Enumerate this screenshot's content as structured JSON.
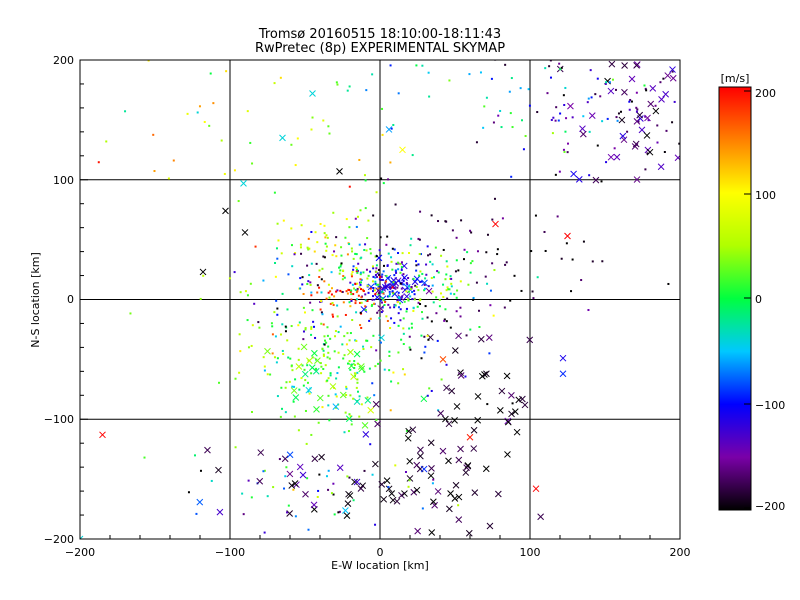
{
  "chart_data": {
    "type": "scatter",
    "title": "Tromsø 20160515 18:10:00-18:11:43",
    "subtitle": "RwPretec (8p) EXPERIMENTAL SKYMAP",
    "xlabel": "E-W location [km]",
    "ylabel": "N-S location [km]",
    "xlim": [
      -200,
      200
    ],
    "ylim": [
      -200,
      200
    ],
    "xticks": [
      "−200",
      "−100",
      "0",
      "100",
      "200"
    ],
    "yticks": [
      "−200",
      "−100",
      "0",
      "100",
      "200"
    ],
    "grid": true,
    "colorbar": {
      "label": "[m/s]",
      "range": [
        -200,
        200
      ],
      "ticks": [
        "200",
        "100",
        "0",
        "−100",
        "−200"
      ],
      "colors": [
        "#000000",
        "#7a00a8",
        "#0000ff",
        "#00c8ff",
        "#00ff40",
        "#b0ff00",
        "#ffff00",
        "#ff8000",
        "#ff0000"
      ]
    },
    "clusters": [
      {
        "x": 8,
        "y": 12,
        "sx": 14,
        "sy": 12,
        "v": -120,
        "vs": 30,
        "n": 130,
        "sym": "dot"
      },
      {
        "x": 12,
        "y": 8,
        "sx": 10,
        "sy": 8,
        "v": -100,
        "vs": 25,
        "n": 30,
        "sym": "x"
      },
      {
        "x": -15,
        "y": 3,
        "sx": 12,
        "sy": 10,
        "v": 175,
        "vs": 25,
        "n": 60,
        "sym": "dot"
      },
      {
        "x": 20,
        "y": 10,
        "sx": 25,
        "sy": 15,
        "v": 10,
        "vs": 40,
        "n": 120,
        "sym": "dot"
      },
      {
        "x": -30,
        "y": -55,
        "sx": 25,
        "sy": 28,
        "v": 20,
        "vs": 35,
        "n": 200,
        "sym": "dot"
      },
      {
        "x": -35,
        "y": -60,
        "sx": 25,
        "sy": 25,
        "v": 20,
        "vs": 40,
        "n": 30,
        "sym": "x"
      },
      {
        "x": -30,
        "y": 40,
        "sx": 20,
        "sy": 20,
        "v": 50,
        "vs": 70,
        "n": 80,
        "sym": "dot"
      },
      {
        "x": -40,
        "y": 10,
        "sx": 30,
        "sy": 25,
        "v": -120,
        "vs": 80,
        "n": 70,
        "sym": "dot"
      },
      {
        "x": 20,
        "y": -150,
        "sx": 30,
        "sy": 25,
        "v": -190,
        "vs": 15,
        "n": 60,
        "sym": "x"
      },
      {
        "x": -40,
        "y": -160,
        "sx": 45,
        "sy": 25,
        "v": -60,
        "vs": 90,
        "n": 60,
        "sym": "dot"
      },
      {
        "x": -40,
        "y": -155,
        "sx": 40,
        "sy": 25,
        "v": -150,
        "vs": 40,
        "n": 25,
        "sym": "x"
      },
      {
        "x": 75,
        "y": -80,
        "sx": 20,
        "sy": 25,
        "v": -190,
        "vs": 20,
        "n": 35,
        "sym": "x"
      },
      {
        "x": 60,
        "y": 30,
        "sx": 40,
        "sy": 30,
        "v": -190,
        "vs": 20,
        "n": 70,
        "sym": "dot"
      },
      {
        "x": 170,
        "y": 155,
        "sx": 25,
        "sy": 30,
        "v": -160,
        "vs": 30,
        "n": 45,
        "sym": "x"
      },
      {
        "x": 155,
        "y": 160,
        "sx": 35,
        "sy": 35,
        "v": -160,
        "vs": 40,
        "n": 90,
        "sym": "dot"
      },
      {
        "x": 80,
        "y": 180,
        "sx": 50,
        "sy": 25,
        "v": -30,
        "vs": 40,
        "n": 50,
        "sym": "dot"
      },
      {
        "x": -80,
        "y": 150,
        "sx": 70,
        "sy": 30,
        "v": 70,
        "vs": 60,
        "n": 50,
        "sym": "dot"
      },
      {
        "x": -60,
        "y": -10,
        "sx": 50,
        "sy": 40,
        "v": 60,
        "vs": 50,
        "n": 40,
        "sym": "dot"
      },
      {
        "x": 50,
        "y": -30,
        "sx": 25,
        "sy": 25,
        "v": -140,
        "vs": 60,
        "n": 35,
        "sym": "dot"
      }
    ],
    "points": [
      {
        "x": -185,
        "y": -113,
        "v": 200,
        "sym": "x"
      },
      {
        "x": -157,
        "y": -132,
        "v": 20,
        "sym": "dot"
      },
      {
        "x": -118,
        "y": 23,
        "v": -200,
        "sym": "x"
      },
      {
        "x": -103,
        "y": 74,
        "v": -200,
        "sym": "x"
      },
      {
        "x": -91,
        "y": 97,
        "v": -40,
        "sym": "x"
      },
      {
        "x": 125,
        "y": 53,
        "v": 200,
        "sym": "x"
      },
      {
        "x": 77,
        "y": 63,
        "v": 200,
        "sym": "x"
      },
      {
        "x": 104,
        "y": -158,
        "v": 200,
        "sym": "x"
      },
      {
        "x": 60,
        "y": -115,
        "v": 190,
        "sym": "x"
      },
      {
        "x": 42,
        "y": -50,
        "v": 170,
        "sym": "x"
      },
      {
        "x": 15,
        "y": 125,
        "v": 100,
        "sym": "x"
      },
      {
        "x": 6,
        "y": 142,
        "v": -60,
        "sym": "x"
      },
      {
        "x": 122,
        "y": -62,
        "v": -90,
        "sym": "x"
      },
      {
        "x": 122,
        "y": -49,
        "v": -110,
        "sym": "x"
      },
      {
        "x": -45,
        "y": 172,
        "v": -40,
        "sym": "x"
      },
      {
        "x": -65,
        "y": 135,
        "v": -40,
        "sym": "x"
      },
      {
        "x": -27,
        "y": 107,
        "v": -200,
        "sym": "x"
      },
      {
        "x": -90,
        "y": 56,
        "v": -200,
        "sym": "x"
      },
      {
        "x": 195,
        "y": 192,
        "v": -120,
        "sym": "x"
      },
      {
        "x": 180,
        "y": 123,
        "v": -200,
        "sym": "x"
      },
      {
        "x": 178,
        "y": 137,
        "v": -200,
        "sym": "x"
      },
      {
        "x": -200,
        "y": -200,
        "v": -40,
        "sym": "x"
      }
    ]
  }
}
